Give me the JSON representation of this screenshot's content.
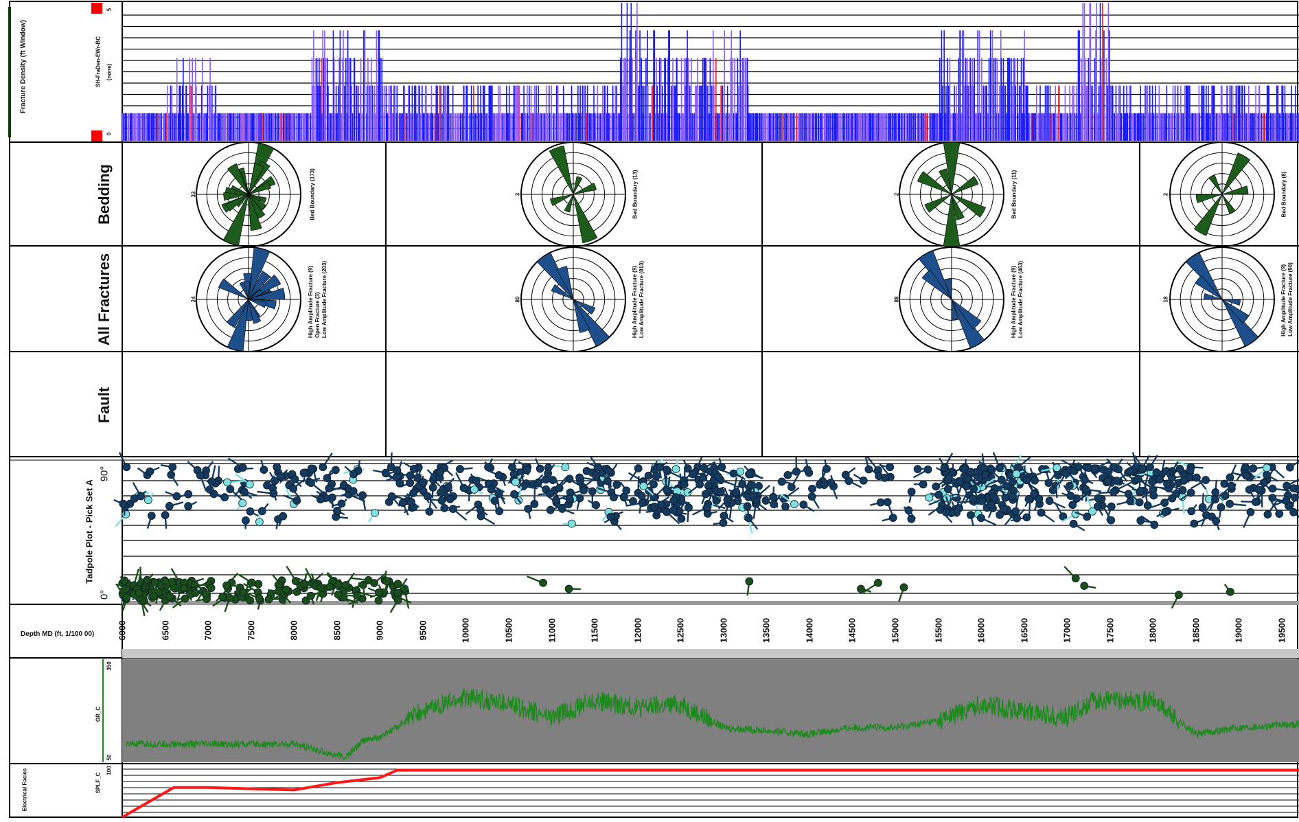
{
  "colors": {
    "frac_high": "#1a1aff",
    "frac_low": "#8a5cff",
    "frac_red": "#ff2020",
    "bedding": "#1e5c1e",
    "fracture": "#1f4f8a",
    "tadpole_dark": "#143a5e",
    "tadpole_light": "#7fe0e0",
    "tadpole_green": "#1b4d1b",
    "gr_curve": "#1a8a1a",
    "gr_bg": "#808080",
    "sep_curve": "#ff1a1a"
  },
  "tracks": {
    "fracture_density": {
      "label": "Fracture Density (ft Window)",
      "curve": "SH-FraDen-EWr-BC",
      "unit": "(none)",
      "scale_min": "0",
      "scale_max": "5"
    },
    "bedding": {
      "label": "Bedding"
    },
    "all_fractures": {
      "label": "All Fractures"
    },
    "fault": {
      "label": "Fault"
    },
    "tadpole": {
      "label": "Tadpole Plot - Pick Set A",
      "top": "90°",
      "bottom": "0°"
    },
    "depth": {
      "label": "Depth MD (ft, 1/100 00)"
    },
    "gr": {
      "curve": "GR_C",
      "scale_min": "50",
      "scale_max": "350"
    },
    "bottom": {
      "label": "Electrical Facies",
      "curve": "SPLF_C",
      "scale_max": "100"
    }
  },
  "roses": [
    {
      "bedding_legend": "Bed Boundary (173)",
      "bedding_scale": "33",
      "fracture_legend": [
        "High Amplitude Fracture (9)",
        "Open Fracture (3)",
        "Low Amplitude Fracture (203)"
      ],
      "fracture_scale": "24"
    },
    {
      "bedding_legend": "Bed Boundary (13)",
      "bedding_scale": "3",
      "fracture_legend": [
        "High Amplitude Fracture (9)",
        "Low Amplitude Fracture (813)"
      ],
      "fracture_scale": "80"
    },
    {
      "bedding_legend": "Bed Boundary (11)",
      "bedding_scale": "2",
      "fracture_legend": [
        "High Amplitude Fracture (9)",
        "Low Amplitude Fracture (463)"
      ],
      "fracture_scale": "88"
    },
    {
      "bedding_legend": "Bed Boundary (8)",
      "bedding_scale": "2",
      "fracture_legend": [
        "High Amplitude Fracture (9)",
        "Low Amplitude Fracture (90)"
      ],
      "fracture_scale": "18"
    }
  ],
  "depth_ticks": [
    "6000",
    "6500",
    "7000",
    "7500",
    "8000",
    "8500",
    "9000",
    "9500",
    "10000",
    "10500",
    "11000",
    "11500",
    "12000",
    "12500",
    "13000",
    "13500",
    "14000",
    "14500",
    "15000",
    "15500",
    "16000",
    "16500",
    "17000",
    "17500",
    "18000",
    "18500",
    "19000",
    "19500"
  ],
  "chart_data": [
    {
      "type": "bar",
      "title": "Fracture Density (ft Window)",
      "ylabel": "SH-FraDen-EWr-BC (none)",
      "ylim": [
        0,
        5
      ],
      "xlim": [
        6000,
        19700
      ],
      "clusters": [
        {
          "x": [
            6000,
            6500
          ],
          "level": 1
        },
        {
          "x": [
            6500,
            7100
          ],
          "level": 2.5
        },
        {
          "x": [
            7100,
            8200
          ],
          "level": 1
        },
        {
          "x": [
            8200,
            9100
          ],
          "level": 3.5
        },
        {
          "x": [
            9100,
            11800
          ],
          "level": 2
        },
        {
          "x": [
            11800,
            12000
          ],
          "level": 5
        },
        {
          "x": [
            12000,
            13300
          ],
          "level": 3.5
        },
        {
          "x": [
            13300,
            15500
          ],
          "level": 1
        },
        {
          "x": [
            15500,
            16500
          ],
          "level": 4
        },
        {
          "x": [
            16500,
            17100
          ],
          "level": 2
        },
        {
          "x": [
            17100,
            17500
          ],
          "level": 5
        },
        {
          "x": [
            17500,
            19700
          ],
          "level": 2
        }
      ]
    },
    {
      "type": "scatter",
      "title": "Tadpole Plot - Pick Set A",
      "ylim": [
        0,
        90
      ],
      "groups": [
        {
          "x_range": [
            6000,
            19700
          ],
          "y_range": [
            45,
            90
          ],
          "kind": "fracture"
        },
        {
          "x_range": [
            6000,
            9200
          ],
          "y_range": [
            0,
            15
          ],
          "kind": "bedding"
        }
      ]
    },
    {
      "type": "line",
      "title": "GR_C",
      "ylim": [
        50,
        350
      ],
      "x": [
        6000,
        7000,
        8000,
        8600,
        8800,
        9000,
        9500,
        10000,
        10500,
        11000,
        11500,
        12000,
        12500,
        13000,
        13500,
        14000,
        14500,
        15000,
        15500,
        16000,
        16500,
        17000,
        17300,
        18000,
        18500,
        19000,
        19700
      ],
      "y": [
        100,
        100,
        100,
        60,
        110,
        120,
        200,
        240,
        220,
        180,
        230,
        210,
        220,
        150,
        140,
        130,
        150,
        150,
        170,
        220,
        200,
        180,
        230,
        230,
        130,
        150,
        160
      ]
    },
    {
      "type": "line",
      "title": "SPLF_C",
      "ylim": [
        0,
        100
      ],
      "x": [
        6000,
        6600,
        7000,
        8000,
        8500,
        9000,
        9200,
        19700
      ],
      "y": [
        0,
        60,
        60,
        55,
        70,
        80,
        95,
        95
      ]
    }
  ]
}
